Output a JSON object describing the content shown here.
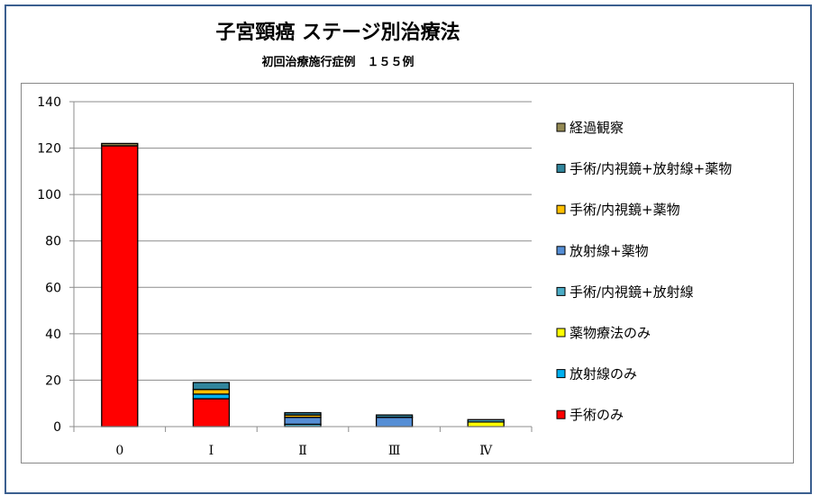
{
  "chart_data": {
    "type": "bar",
    "stacked": true,
    "title": "子宮頸癌 ステージ別治療法",
    "subtitle": "初回治療施行症例　１５５例",
    "categories": [
      "0",
      "Ⅰ",
      "Ⅱ",
      "Ⅲ",
      "Ⅳ"
    ],
    "ylim": [
      0,
      140
    ],
    "yticks": [
      "0",
      "20",
      "40",
      "60",
      "80",
      "100",
      "120",
      "140"
    ],
    "grid": true,
    "legend_position": "right",
    "series": [
      {
        "name": "手術のみ",
        "color": "#FF0000",
        "values": [
          121,
          12,
          0,
          0,
          0
        ]
      },
      {
        "name": "放射線のみ",
        "color": "#00B0F0",
        "values": [
          0,
          2,
          0,
          0,
          0
        ]
      },
      {
        "name": "薬物療法のみ",
        "color": "#FFFF00",
        "values": [
          0,
          0,
          0,
          0,
          2
        ]
      },
      {
        "name": "手術/内視鏡+放射線",
        "color": "#4BACC6",
        "values": [
          0,
          0,
          1,
          0,
          1
        ]
      },
      {
        "name": "放射線+薬物",
        "color": "#558ED5",
        "values": [
          0,
          0,
          3,
          4,
          0
        ]
      },
      {
        "name": "手術/内視鏡+薬物",
        "color": "#FFC000",
        "values": [
          0,
          2,
          1,
          0,
          0
        ]
      },
      {
        "name": "手術/内視鏡+放射線+薬物",
        "color": "#31859C",
        "values": [
          0,
          3,
          1,
          1,
          0
        ]
      },
      {
        "name": "経過観察",
        "color": "#948A54",
        "values": [
          1,
          0,
          0,
          0,
          0
        ]
      }
    ]
  }
}
